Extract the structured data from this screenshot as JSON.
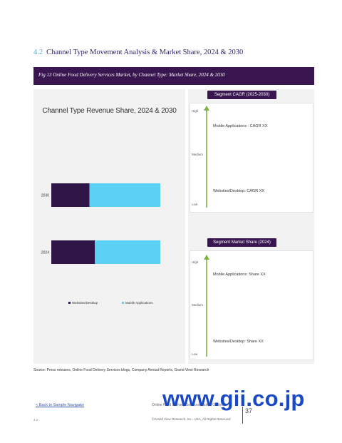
{
  "section": {
    "number": "4.2",
    "title": "Channel Type Movement Analysis & Market Share, 2024 & 2030"
  },
  "figure": {
    "caption": "Fig 13 Online Food Delivery Services Market, by Channel Type: Market Share, 2024 & 2030"
  },
  "chart_data": {
    "type": "bar",
    "orientation": "horizontal",
    "stacked": true,
    "title": "Channel Type Revenue Share, 2024 & 2030",
    "categories": [
      "2030",
      "2024"
    ],
    "series": [
      {
        "name": "Websites/Desktop",
        "values": [
          35,
          40
        ],
        "color": "#2e1447"
      },
      {
        "name": "Mobile Applications",
        "values": [
          65,
          60
        ],
        "color": "#5dd0f5"
      }
    ],
    "xlim": [
      0,
      100
    ],
    "legend": "bottom",
    "grid": false
  },
  "cagr_panel": {
    "header": "Segment CAGR (2025-2030)",
    "axis": {
      "high": "High",
      "medium": "Medium",
      "low": "Low"
    },
    "items": [
      "Mobile Applications : CAGR XX",
      "Websites/Desktop: CAGR XX"
    ]
  },
  "share_panel": {
    "header": "Segment Market Share (2024)",
    "axis": {
      "high": "High",
      "medium": "Medium",
      "low": "Low"
    },
    "items": [
      "Mobile Applications: Share XX",
      "Websites/Desktop: Share XX"
    ]
  },
  "colors": {
    "header_purple": "#3a1650",
    "arrow_green": "#7cb342"
  },
  "source": "Source: Press releases, Online Food Delivery Services blogs, Company Annual Reports, Grand View Research",
  "footer": {
    "back_link": "< Back to Sample Navigator",
    "left_small": "4.2",
    "center": "Online Food Delivery Services Market Outlook",
    "copyright": "©Grand View Research, Inc., USA, All Rights Reserved",
    "page": "37"
  },
  "watermark": "www.gii.co.jp"
}
